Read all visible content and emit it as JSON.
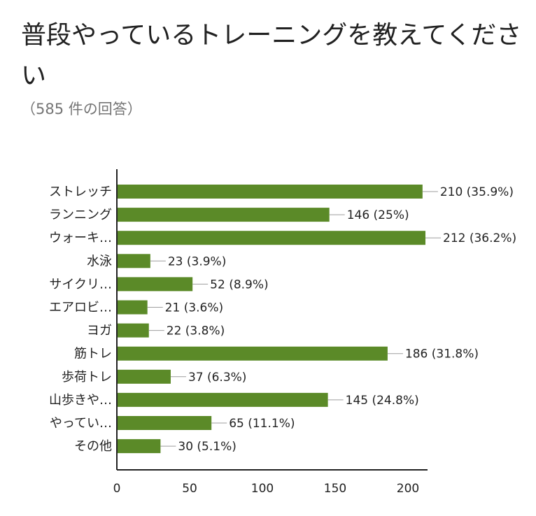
{
  "header": {
    "title": "普段やっているトレーニングを教えてください",
    "response_count": "（585 件の回答）"
  },
  "colors": {
    "bar": "#5b8a28",
    "axis": "#222222"
  },
  "chart_data": {
    "type": "bar",
    "orientation": "horizontal",
    "categories": [
      "ストレッチ",
      "ランニング",
      "ウォーキ…",
      "水泳",
      "サイクリ…",
      "エアロビ…",
      "ヨガ",
      "筋トレ",
      "歩荷トレ",
      "山歩きや…",
      "やってい…",
      "その他"
    ],
    "values": [
      210,
      146,
      212,
      23,
      52,
      21,
      22,
      186,
      37,
      145,
      65,
      30
    ],
    "data_labels": [
      "210 (35.9%)",
      "146 (25%)",
      "212 (36.2%)",
      "23 (3.9%)",
      "52 (8.9%)",
      "21 (3.6%)",
      "22 (3.8%)",
      "186 (31.8%)",
      "37 (6.3%)",
      "145 (24.8%)",
      "65 (11.1%)",
      "30 (5.1%)"
    ],
    "xticks": [
      0,
      50,
      100,
      150,
      200
    ],
    "xlim": [
      0,
      212
    ],
    "grid": false,
    "legend": "none"
  }
}
